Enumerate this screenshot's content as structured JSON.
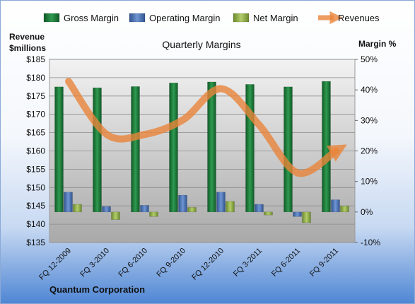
{
  "chart_data": {
    "type": "bar",
    "title": "Quarterly Margins",
    "company": "Quantum Corporation",
    "ylabel_left_line1": "Revenue",
    "ylabel_left_line2": "$millions",
    "ylabel_right": "Margin %",
    "left_axis": {
      "ylim": [
        135,
        185
      ],
      "ticks": [
        135,
        140,
        145,
        150,
        155,
        160,
        165,
        170,
        175,
        180,
        185
      ],
      "tick_labels": [
        "$135",
        "$140",
        "$145",
        "$150",
        "$155",
        "$160",
        "$165",
        "$170",
        "$175",
        "$180",
        "$185"
      ]
    },
    "right_axis": {
      "ylim": [
        -10,
        50
      ],
      "ticks": [
        -10,
        0,
        10,
        20,
        30,
        40,
        50
      ],
      "tick_labels": [
        "-10%",
        "0%",
        "10%",
        "20%",
        "30%",
        "40%",
        "50%"
      ]
    },
    "categories": [
      "FQ 12-2009",
      "FQ 3-2010",
      "FQ 6-2010",
      "FQ 9-2010",
      "FQ 12-2010",
      "FQ 3-2011",
      "FQ 6-2011",
      "FQ 9-2011"
    ],
    "series": [
      {
        "name": "Gross Margin",
        "axis": "right",
        "kind": "bar",
        "color": "#1e7a3a",
        "values": [
          41,
          40.7,
          41.1,
          42.3,
          42.6,
          41.8,
          41,
          42.8
        ]
      },
      {
        "name": "Operating Margin",
        "axis": "right",
        "kind": "bar",
        "color": "#4a72b8",
        "values": [
          6.5,
          1.8,
          2.2,
          5.5,
          6.5,
          2.5,
          -1.5,
          4
        ]
      },
      {
        "name": "Net Margin",
        "axis": "right",
        "kind": "bar",
        "color": "#8fae4a",
        "values": [
          2.5,
          -2.5,
          -1.5,
          1.5,
          3.5,
          -1,
          -3.5,
          2
        ]
      },
      {
        "name": "Revenues",
        "axis": "left",
        "kind": "line",
        "color": "#e8843a",
        "values": [
          179,
          164.5,
          164.5,
          168.5,
          177,
          167,
          154,
          160
        ]
      }
    ],
    "grid": true,
    "legend": "top"
  }
}
